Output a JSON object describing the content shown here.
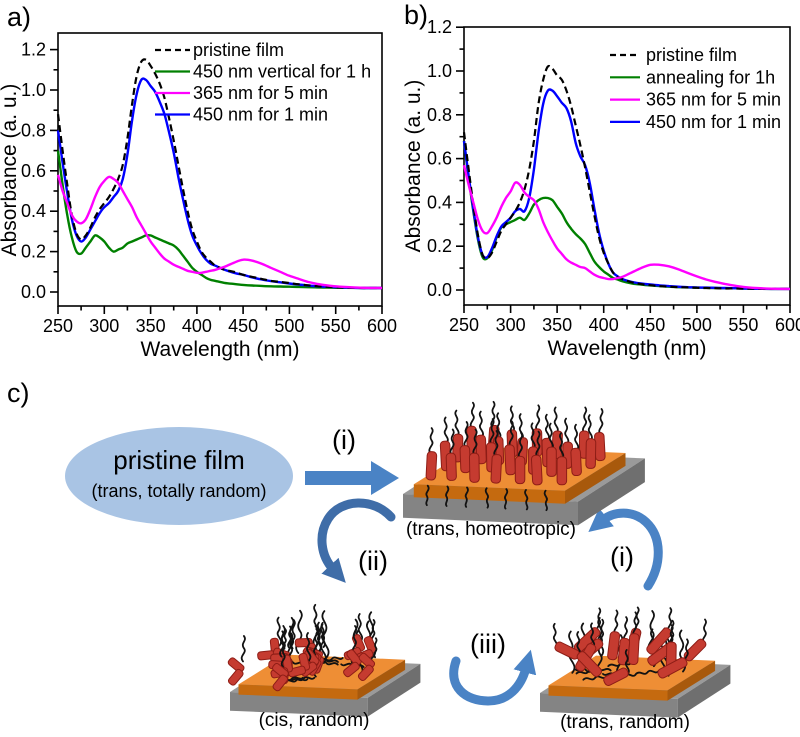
{
  "figure": {
    "background": "#ffffff",
    "panel_letters": {
      "a": "a)",
      "b": "b)",
      "c": "c)"
    }
  },
  "chart_data": [
    {
      "id": "a",
      "type": "line",
      "title": "",
      "xlabel": "Wavelength (nm)",
      "ylabel": "Absorbance (a. u.)",
      "xlim": [
        250,
        600
      ],
      "ylim": [
        0,
        1.2
      ],
      "xticks": [
        250,
        300,
        350,
        400,
        450,
        500,
        550,
        600
      ],
      "yticks": [
        "0.0",
        "0.2",
        "0.4",
        "0.6",
        "0.8",
        "1.0",
        "1.2"
      ],
      "legend_position": "top-right",
      "grid": false,
      "x": [
        250,
        255,
        260,
        265,
        270,
        275,
        280,
        285,
        290,
        295,
        300,
        305,
        310,
        315,
        320,
        325,
        330,
        335,
        340,
        345,
        350,
        355,
        360,
        365,
        370,
        375,
        380,
        385,
        390,
        395,
        400,
        405,
        410,
        415,
        420,
        430,
        440,
        450,
        460,
        470,
        480,
        490,
        500,
        510,
        520,
        530,
        540,
        550,
        560,
        580,
        600
      ],
      "series": [
        {
          "name": "pristine film",
          "color": "#000000",
          "style": "dashed",
          "y": [
            0.88,
            0.7,
            0.53,
            0.38,
            0.29,
            0.26,
            0.28,
            0.32,
            0.37,
            0.41,
            0.44,
            0.47,
            0.51,
            0.56,
            0.63,
            0.76,
            0.93,
            1.07,
            1.14,
            1.15,
            1.12,
            1.08,
            1.03,
            0.96,
            0.86,
            0.75,
            0.63,
            0.51,
            0.4,
            0.31,
            0.25,
            0.2,
            0.17,
            0.15,
            0.13,
            0.11,
            0.1,
            0.085,
            0.075,
            0.065,
            0.055,
            0.05,
            0.044,
            0.038,
            0.033,
            0.029,
            0.026,
            0.024,
            0.022,
            0.02,
            0.02
          ]
        },
        {
          "name": "450 nm vertical for 1 h",
          "color": "#008000",
          "style": "solid",
          "y": [
            0.7,
            0.53,
            0.38,
            0.27,
            0.2,
            0.19,
            0.22,
            0.25,
            0.28,
            0.27,
            0.25,
            0.22,
            0.2,
            0.21,
            0.22,
            0.24,
            0.25,
            0.26,
            0.27,
            0.28,
            0.28,
            0.27,
            0.26,
            0.25,
            0.24,
            0.23,
            0.21,
            0.18,
            0.15,
            0.12,
            0.1,
            0.085,
            0.07,
            0.06,
            0.055,
            0.045,
            0.04,
            0.035,
            0.032,
            0.03,
            0.028,
            0.027,
            0.026,
            0.025,
            0.024,
            0.023,
            0.022,
            0.021,
            0.021,
            0.02,
            0.02
          ]
        },
        {
          "name": "365 nm for 5 min",
          "color": "#ff00ff",
          "style": "solid",
          "y": [
            0.58,
            0.5,
            0.44,
            0.38,
            0.35,
            0.34,
            0.36,
            0.41,
            0.47,
            0.52,
            0.55,
            0.57,
            0.56,
            0.54,
            0.5,
            0.46,
            0.42,
            0.37,
            0.33,
            0.29,
            0.25,
            0.22,
            0.19,
            0.165,
            0.15,
            0.135,
            0.125,
            0.115,
            0.105,
            0.1,
            0.095,
            0.095,
            0.1,
            0.105,
            0.11,
            0.125,
            0.145,
            0.16,
            0.155,
            0.14,
            0.12,
            0.1,
            0.08,
            0.065,
            0.05,
            0.04,
            0.033,
            0.028,
            0.025,
            0.021,
            0.02
          ]
        },
        {
          "name": "450 nm for 1 min",
          "color": "#0000ff",
          "style": "solid",
          "y": [
            0.8,
            0.64,
            0.49,
            0.36,
            0.28,
            0.25,
            0.27,
            0.31,
            0.35,
            0.39,
            0.42,
            0.44,
            0.47,
            0.5,
            0.56,
            0.68,
            0.85,
            0.98,
            1.05,
            1.05,
            1.02,
            0.99,
            0.94,
            0.88,
            0.79,
            0.69,
            0.57,
            0.46,
            0.36,
            0.28,
            0.23,
            0.19,
            0.16,
            0.14,
            0.13,
            0.11,
            0.095,
            0.085,
            0.072,
            0.062,
            0.054,
            0.048,
            0.042,
            0.037,
            0.032,
            0.028,
            0.026,
            0.024,
            0.022,
            0.02,
            0.02
          ]
        }
      ]
    },
    {
      "id": "b",
      "type": "line",
      "title": "",
      "xlabel": "Wavelength (nm)",
      "ylabel": "Absorbance (a. u.)",
      "xlim": [
        250,
        600
      ],
      "ylim": [
        0,
        1.2
      ],
      "xticks": [
        250,
        300,
        350,
        400,
        450,
        500,
        550,
        600
      ],
      "yticks": [
        "0.0",
        "0.2",
        "0.4",
        "0.6",
        "0.8",
        "1.0",
        "1.2"
      ],
      "legend_position": "top-right",
      "grid": false,
      "x": [
        250,
        255,
        260,
        265,
        270,
        275,
        280,
        285,
        290,
        295,
        300,
        305,
        310,
        315,
        320,
        325,
        330,
        335,
        340,
        345,
        350,
        355,
        360,
        365,
        370,
        375,
        380,
        385,
        390,
        395,
        400,
        405,
        410,
        415,
        420,
        430,
        440,
        450,
        460,
        470,
        480,
        490,
        500,
        510,
        520,
        530,
        540,
        550,
        560,
        580,
        600
      ],
      "series": [
        {
          "name": "pristine film",
          "color": "#000000",
          "style": "dashed",
          "y": [
            0.72,
            0.55,
            0.39,
            0.25,
            0.16,
            0.145,
            0.17,
            0.22,
            0.27,
            0.3,
            0.33,
            0.36,
            0.4,
            0.46,
            0.55,
            0.68,
            0.85,
            0.96,
            1.02,
            1.01,
            0.98,
            0.96,
            0.91,
            0.84,
            0.75,
            0.66,
            0.56,
            0.45,
            0.34,
            0.24,
            0.17,
            0.12,
            0.08,
            0.06,
            0.05,
            0.035,
            0.027,
            0.022,
            0.018,
            0.015,
            0.013,
            0.012,
            0.01,
            0.009,
            0.008,
            0.007,
            0.007,
            0.006,
            0.006,
            0.005,
            0.005
          ]
        },
        {
          "name": "annealing for 1h",
          "color": "#008000",
          "style": "solid",
          "y": [
            0.68,
            0.51,
            0.36,
            0.23,
            0.15,
            0.145,
            0.18,
            0.24,
            0.285,
            0.3,
            0.31,
            0.32,
            0.33,
            0.32,
            0.35,
            0.39,
            0.41,
            0.42,
            0.42,
            0.41,
            0.38,
            0.35,
            0.31,
            0.28,
            0.255,
            0.235,
            0.21,
            0.17,
            0.13,
            0.105,
            0.085,
            0.07,
            0.055,
            0.048,
            0.04,
            0.03,
            0.025,
            0.021,
            0.018,
            0.015,
            0.013,
            0.012,
            0.011,
            0.01,
            0.009,
            0.008,
            0.008,
            0.007,
            0.006,
            0.005,
            0.005
          ]
        },
        {
          "name": "365 nm for 5 min",
          "color": "#ff00ff",
          "style": "solid",
          "y": [
            0.57,
            0.48,
            0.4,
            0.32,
            0.27,
            0.26,
            0.29,
            0.33,
            0.38,
            0.42,
            0.45,
            0.49,
            0.48,
            0.445,
            0.425,
            0.41,
            0.37,
            0.31,
            0.265,
            0.225,
            0.19,
            0.165,
            0.14,
            0.125,
            0.115,
            0.105,
            0.1,
            0.085,
            0.07,
            0.06,
            0.055,
            0.05,
            0.05,
            0.055,
            0.06,
            0.08,
            0.1,
            0.115,
            0.115,
            0.108,
            0.095,
            0.078,
            0.062,
            0.048,
            0.037,
            0.028,
            0.02,
            0.014,
            0.01,
            0.006,
            0.005
          ]
        },
        {
          "name": "450 nm for 1 min",
          "color": "#0000ff",
          "style": "solid",
          "y": [
            0.68,
            0.52,
            0.37,
            0.24,
            0.16,
            0.15,
            0.19,
            0.245,
            0.29,
            0.31,
            0.33,
            0.36,
            0.37,
            0.36,
            0.42,
            0.55,
            0.72,
            0.85,
            0.91,
            0.91,
            0.885,
            0.855,
            0.83,
            0.77,
            0.67,
            0.61,
            0.57,
            0.49,
            0.37,
            0.26,
            0.18,
            0.12,
            0.08,
            0.062,
            0.05,
            0.037,
            0.03,
            0.025,
            0.021,
            0.018,
            0.015,
            0.013,
            0.012,
            0.011,
            0.01,
            0.009,
            0.008,
            0.007,
            0.006,
            0.005,
            0.005
          ]
        }
      ]
    }
  ],
  "scheme": {
    "pristine": {
      "title": "pristine film",
      "subtitle": "(trans, totally random)"
    },
    "steps": {
      "i": "(i)",
      "ii": "(ii)",
      "iii": "(iii)"
    },
    "captions": {
      "homeotropic": "(trans, homeotropic)",
      "cis": "(cis, random)",
      "trans_random": "(trans, random)"
    },
    "colors": {
      "ellipse_fill": "#a9c4e4",
      "arrow_blue": "#4a83c5",
      "arrow_dark_blue": "#3f6da8",
      "substrate_orange": "#ee8e35",
      "substrate_orange_side": "#c56a0f",
      "substrate_orange_right": "#a8590c",
      "substrate_gray": "#9a9a9a",
      "substrate_gray_side": "#848484",
      "substrate_gray_right": "#6f6f6f",
      "rod_red": "#c53b30",
      "rod_red_dark": "#8e1d16",
      "chain_black": "#121212"
    }
  }
}
